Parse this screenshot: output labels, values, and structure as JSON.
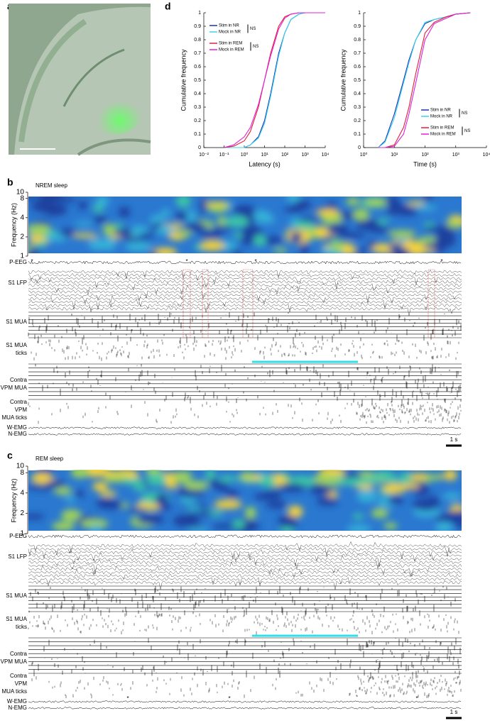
{
  "panels": {
    "a": {
      "label": "a"
    },
    "d": {
      "label": "d"
    },
    "b": {
      "label": "b",
      "title": "NREM sleep",
      "freq_label": "Frequency (Hz)",
      "freq_lim": [
        1,
        10
      ],
      "freq_ticks": [
        1,
        2,
        4,
        8,
        10
      ],
      "traces": [
        {
          "label": [
            "P-EEG"
          ]
        },
        {
          "label": [
            "S1 LFP"
          ]
        },
        {
          "label": [
            "S1 MUA"
          ]
        },
        {
          "label": [
            "S1 MUA",
            "ticks"
          ]
        },
        {
          "label": [
            "Contra",
            "VPM MUA"
          ]
        },
        {
          "label": [
            "Contra",
            "VPM",
            "MUA ticks"
          ]
        },
        {
          "label": [
            "W-EMG"
          ]
        },
        {
          "label": [
            "N-EMG"
          ]
        }
      ],
      "asterisks": [
        "*",
        "*",
        "*",
        "*"
      ],
      "scale": "1 s"
    },
    "c": {
      "label": "c",
      "title": "REM sleep",
      "freq_label": "Frequency (Hz)",
      "freq_lim": [
        1,
        10
      ],
      "freq_ticks": [
        1,
        2,
        4,
        8,
        10
      ],
      "traces": [
        {
          "label": [
            "P-EEG"
          ]
        },
        {
          "label": [
            "S1 LFP"
          ]
        },
        {
          "label": [
            "S1 MUA"
          ]
        },
        {
          "label": [
            "S1 MUA",
            "ticks"
          ]
        },
        {
          "label": [
            "Contra",
            "VPM MUA"
          ]
        },
        {
          "label": [
            "Contra",
            "VPM",
            "MUA ticks"
          ]
        },
        {
          "label": [
            "W-EMG"
          ]
        },
        {
          "label": [
            "N-EMG"
          ]
        }
      ],
      "asterisks": [
        "*",
        "*",
        "*"
      ],
      "scale": "1 s"
    }
  },
  "chart_data": [
    {
      "type": "line",
      "xlabel": "Latency (s)",
      "ylabel": "Cumulative frequency",
      "xscale": "log",
      "legend": "upper left",
      "xlim": [
        0.01,
        10000
      ],
      "xticks": [
        {
          "value": 0.01,
          "label": "10⁻²"
        },
        {
          "value": 0.1,
          "label": "10⁻¹"
        },
        {
          "value": 1,
          "label": "10⁰"
        },
        {
          "value": 10,
          "label": "10¹"
        },
        {
          "value": 100,
          "label": "10²"
        },
        {
          "value": 1000,
          "label": "10³"
        },
        {
          "value": 10000,
          "label": "10⁴"
        }
      ],
      "ylim": [
        0,
        1
      ],
      "yticks": [
        0,
        0.1,
        0.2,
        0.3,
        0.4,
        0.5,
        0.6,
        0.7,
        0.8,
        0.9,
        1
      ],
      "x": [
        0.1,
        0.3,
        1,
        2,
        5,
        10,
        20,
        50,
        100,
        200,
        500,
        1000,
        10000
      ],
      "series": [
        {
          "name": "Stim in NR",
          "color": "#1f2fb5",
          "values": [
            0,
            0,
            0,
            0.02,
            0.08,
            0.2,
            0.4,
            0.7,
            0.85,
            0.95,
            0.99,
            1,
            1
          ]
        },
        {
          "name": "Mock in NR",
          "color": "#35d6e8",
          "values": [
            0,
            0,
            0,
            0.02,
            0.07,
            0.18,
            0.38,
            0.68,
            0.85,
            0.95,
            0.99,
            1,
            1
          ]
        },
        {
          "name": "Stim in REM",
          "color": "#e0203a",
          "values": [
            0,
            0.01,
            0.05,
            0.12,
            0.3,
            0.5,
            0.7,
            0.9,
            0.97,
            0.99,
            1,
            1,
            1
          ]
        },
        {
          "name": "Mock in REM",
          "color": "#e020d8",
          "values": [
            0,
            0.02,
            0.08,
            0.15,
            0.32,
            0.5,
            0.68,
            0.88,
            0.96,
            0.99,
            1,
            1,
            1
          ]
        }
      ],
      "annotations": [
        "NS",
        "NS"
      ]
    },
    {
      "type": "line",
      "xlabel": "Time (s)",
      "ylabel": "Cumulative frequency",
      "xscale": "log",
      "legend": "lower right",
      "xlim": [
        1,
        10000
      ],
      "xticks": [
        {
          "value": 1,
          "label": "10⁰"
        },
        {
          "value": 10,
          "label": "10¹"
        },
        {
          "value": 100,
          "label": "10²"
        },
        {
          "value": 1000,
          "label": "10³"
        },
        {
          "value": 10000,
          "label": "10⁴"
        }
      ],
      "ylim": [
        0,
        1
      ],
      "yticks": [
        0,
        0.1,
        0.2,
        0.3,
        0.4,
        0.5,
        0.6,
        0.7,
        0.8,
        0.9,
        1
      ],
      "x": [
        3,
        5,
        10,
        20,
        30,
        50,
        100,
        200,
        500,
        1000,
        3000
      ],
      "series": [
        {
          "name": "Stim in NR",
          "color": "#1f2fb5",
          "values": [
            0,
            0.05,
            0.25,
            0.5,
            0.65,
            0.8,
            0.92,
            0.95,
            0.97,
            0.99,
            1
          ]
        },
        {
          "name": "Mock in NR",
          "color": "#35d6e8",
          "values": [
            0,
            0.04,
            0.22,
            0.48,
            0.63,
            0.8,
            0.93,
            0.95,
            0.97,
            0.99,
            1
          ]
        },
        {
          "name": "Stim in REM",
          "color": "#e0203a",
          "values": [
            0,
            0,
            0.02,
            0.15,
            0.3,
            0.55,
            0.85,
            0.93,
            0.97,
            0.99,
            1
          ]
        },
        {
          "name": "Mock in REM",
          "color": "#e020d8",
          "values": [
            0,
            0,
            0.01,
            0.1,
            0.25,
            0.48,
            0.8,
            0.92,
            0.96,
            0.99,
            1
          ]
        }
      ],
      "annotations": [
        "NS",
        "NS"
      ]
    }
  ]
}
